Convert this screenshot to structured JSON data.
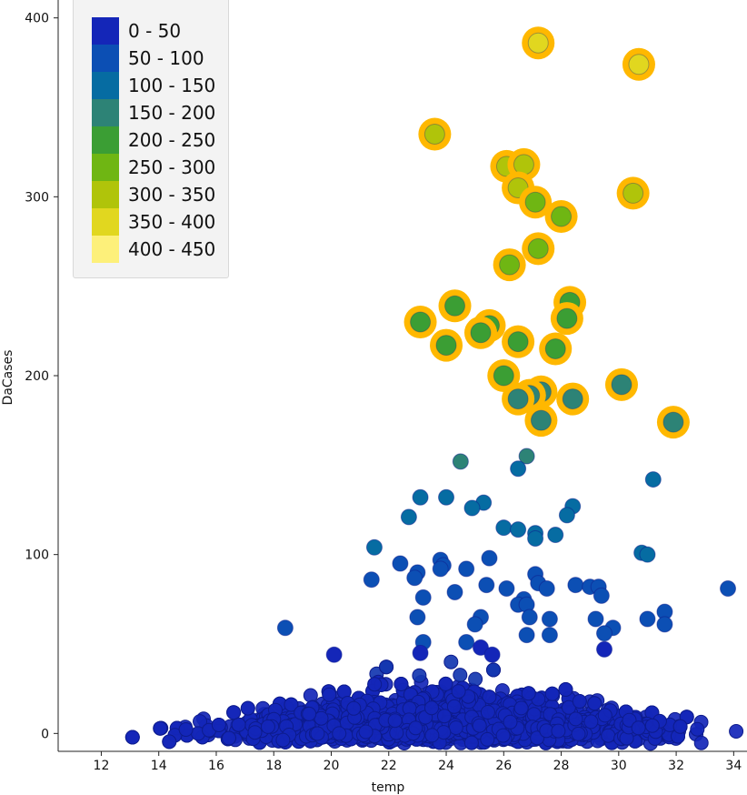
{
  "chart_data": {
    "type": "scatter",
    "xlabel": "temp",
    "ylabel": "DaCases",
    "xlim": [
      10.5,
      34.4
    ],
    "ylim": [
      -10,
      410
    ],
    "x_ticks": [
      "12",
      "14",
      "16",
      "18",
      "20",
      "22",
      "24",
      "26",
      "28",
      "30",
      "32",
      "34"
    ],
    "y_ticks": [
      "0",
      "100",
      "200",
      "300",
      "400"
    ],
    "legend_position": "top-left",
    "legend": [
      {
        "label": "0 - 50",
        "color": "#1426b8"
      },
      {
        "label": "50 - 100",
        "color": "#0c4fb4"
      },
      {
        "label": "100 - 150",
        "color": "#066ca2"
      },
      {
        "label": "150 - 200",
        "color": "#2d8376"
      },
      {
        "label": "200 - 250",
        "color": "#3b9e34"
      },
      {
        "label": "250 - 300",
        "color": "#6fb613"
      },
      {
        "label": "300 - 350",
        "color": "#b0c40a"
      },
      {
        "label": "350 - 400",
        "color": "#e1d71f"
      },
      {
        "label": "400 - 450",
        "color": "#fdf07a"
      }
    ],
    "highlight_color": "#ffb800",
    "dense_cluster_note": "approximately 2500 points with DaCases 0-40 between temp 11 and 34, densest between temp 18 and 30",
    "points": [
      {
        "x": 27.2,
        "y": 386
      },
      {
        "x": 30.7,
        "y": 374
      },
      {
        "x": 23.6,
        "y": 335
      },
      {
        "x": 26.1,
        "y": 317
      },
      {
        "x": 26.7,
        "y": 318
      },
      {
        "x": 26.5,
        "y": 305
      },
      {
        "x": 27.1,
        "y": 297
      },
      {
        "x": 30.5,
        "y": 302
      },
      {
        "x": 28.0,
        "y": 289
      },
      {
        "x": 27.2,
        "y": 271
      },
      {
        "x": 26.2,
        "y": 262
      },
      {
        "x": 28.3,
        "y": 241
      },
      {
        "x": 24.3,
        "y": 239
      },
      {
        "x": 28.2,
        "y": 232
      },
      {
        "x": 23.1,
        "y": 230
      },
      {
        "x": 25.5,
        "y": 228
      },
      {
        "x": 25.2,
        "y": 224
      },
      {
        "x": 26.5,
        "y": 219
      },
      {
        "x": 24.0,
        "y": 217
      },
      {
        "x": 27.8,
        "y": 215
      },
      {
        "x": 26.0,
        "y": 200
      },
      {
        "x": 30.1,
        "y": 195
      },
      {
        "x": 27.3,
        "y": 191
      },
      {
        "x": 26.9,
        "y": 189
      },
      {
        "x": 26.5,
        "y": 187
      },
      {
        "x": 28.4,
        "y": 187
      },
      {
        "x": 27.3,
        "y": 175
      },
      {
        "x": 31.9,
        "y": 174
      },
      {
        "x": 26.8,
        "y": 155
      },
      {
        "x": 24.5,
        "y": 152
      },
      {
        "x": 26.5,
        "y": 148
      },
      {
        "x": 31.2,
        "y": 142
      },
      {
        "x": 24.0,
        "y": 132
      },
      {
        "x": 23.1,
        "y": 132
      },
      {
        "x": 25.3,
        "y": 129
      },
      {
        "x": 28.4,
        "y": 127
      },
      {
        "x": 24.9,
        "y": 126
      },
      {
        "x": 28.2,
        "y": 122
      },
      {
        "x": 22.7,
        "y": 121
      },
      {
        "x": 26.0,
        "y": 115
      },
      {
        "x": 26.5,
        "y": 114
      },
      {
        "x": 27.1,
        "y": 112
      },
      {
        "x": 27.8,
        "y": 111
      },
      {
        "x": 27.1,
        "y": 109
      },
      {
        "x": 21.5,
        "y": 104
      },
      {
        "x": 30.8,
        "y": 101
      },
      {
        "x": 31.0,
        "y": 100
      },
      {
        "x": 25.5,
        "y": 98
      },
      {
        "x": 23.8,
        "y": 97
      },
      {
        "x": 23.9,
        "y": 94
      },
      {
        "x": 22.4,
        "y": 95
      },
      {
        "x": 23.8,
        "y": 92
      },
      {
        "x": 24.7,
        "y": 92
      },
      {
        "x": 23.0,
        "y": 90
      },
      {
        "x": 22.9,
        "y": 87
      },
      {
        "x": 27.1,
        "y": 89
      },
      {
        "x": 21.4,
        "y": 86
      },
      {
        "x": 27.2,
        "y": 84
      },
      {
        "x": 25.4,
        "y": 83
      },
      {
        "x": 28.5,
        "y": 83
      },
      {
        "x": 29.0,
        "y": 82
      },
      {
        "x": 29.3,
        "y": 82
      },
      {
        "x": 26.1,
        "y": 81
      },
      {
        "x": 27.5,
        "y": 81
      },
      {
        "x": 33.8,
        "y": 81
      },
      {
        "x": 24.3,
        "y": 79
      },
      {
        "x": 29.4,
        "y": 77
      },
      {
        "x": 23.2,
        "y": 76
      },
      {
        "x": 26.7,
        "y": 75
      },
      {
        "x": 26.5,
        "y": 72
      },
      {
        "x": 26.8,
        "y": 72
      },
      {
        "x": 31.6,
        "y": 68
      },
      {
        "x": 25.2,
        "y": 65
      },
      {
        "x": 26.9,
        "y": 65
      },
      {
        "x": 23.0,
        "y": 65
      },
      {
        "x": 31.0,
        "y": 64
      },
      {
        "x": 27.6,
        "y": 64
      },
      {
        "x": 29.2,
        "y": 64
      },
      {
        "x": 25.0,
        "y": 61
      },
      {
        "x": 31.6,
        "y": 61
      },
      {
        "x": 18.4,
        "y": 59
      },
      {
        "x": 29.8,
        "y": 59
      },
      {
        "x": 29.5,
        "y": 56
      },
      {
        "x": 27.6,
        "y": 55
      },
      {
        "x": 26.8,
        "y": 55
      },
      {
        "x": 24.7,
        "y": 51
      },
      {
        "x": 23.2,
        "y": 51
      },
      {
        "x": 25.2,
        "y": 48
      },
      {
        "x": 29.5,
        "y": 47
      },
      {
        "x": 23.1,
        "y": 45
      },
      {
        "x": 25.6,
        "y": 44
      },
      {
        "x": 20.1,
        "y": 44
      }
    ]
  }
}
